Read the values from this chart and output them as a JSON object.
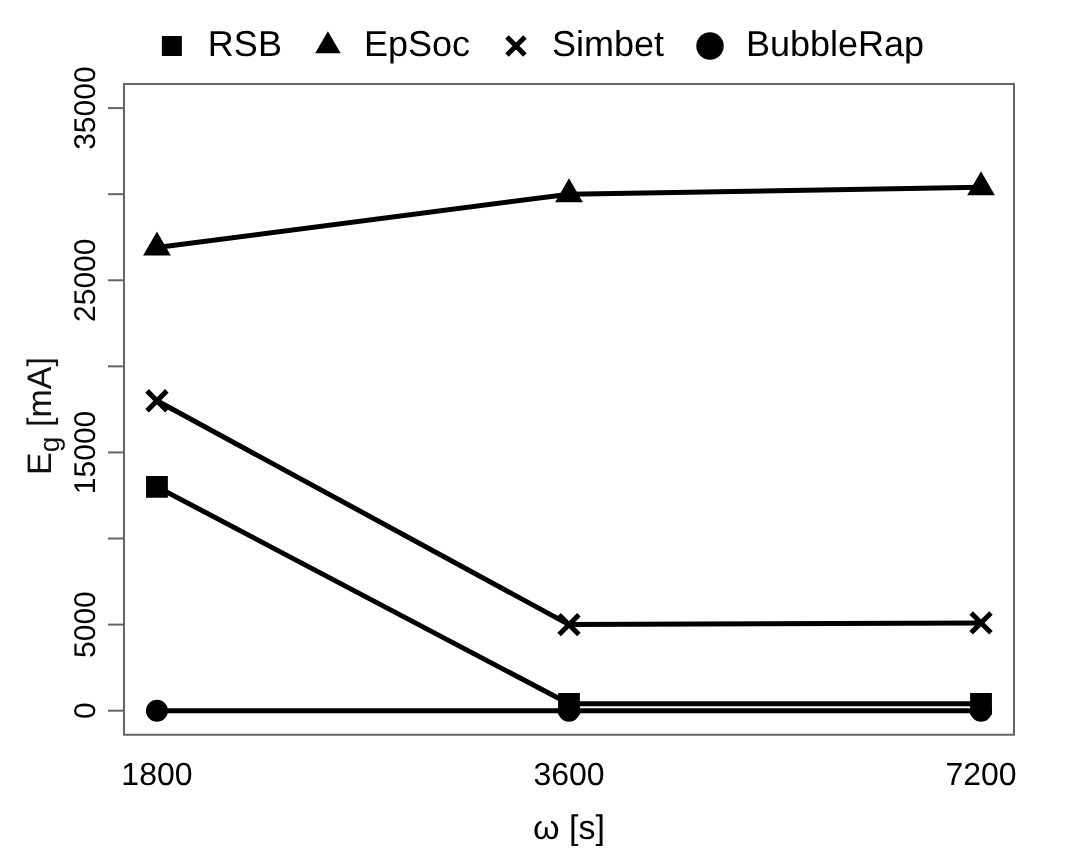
{
  "chart_data": {
    "type": "line",
    "xlabel": "ω [s]",
    "ylabel": "E$_{g}$ [mA]",
    "categories": [
      "1800",
      "3600",
      "7200"
    ],
    "series": [
      {
        "name": "RSB",
        "color": "#000000",
        "marker": "square",
        "values": [
          13000,
          400,
          400
        ]
      },
      {
        "name": "EpSoc",
        "color": "#000000",
        "marker": "triangle",
        "values": [
          26900,
          30000,
          30400
        ]
      },
      {
        "name": "Simbet",
        "color": "#000000",
        "marker": "cross",
        "values": [
          18000,
          5000,
          5100
        ]
      },
      {
        "name": "BubbleRap",
        "color": "#000000",
        "marker": "circle",
        "values": [
          0,
          0,
          0
        ]
      }
    ],
    "ylim": [
      -1400,
      36400
    ],
    "yticks": [
      0,
      5000,
      {
        "value": 10000,
        "label": null
      },
      15000,
      {
        "value": 20000,
        "label": null
      },
      25000,
      {
        "value": 30000,
        "label": null
      },
      35000
    ],
    "grid": false,
    "legend": "top",
    "line_style": "solid"
  }
}
